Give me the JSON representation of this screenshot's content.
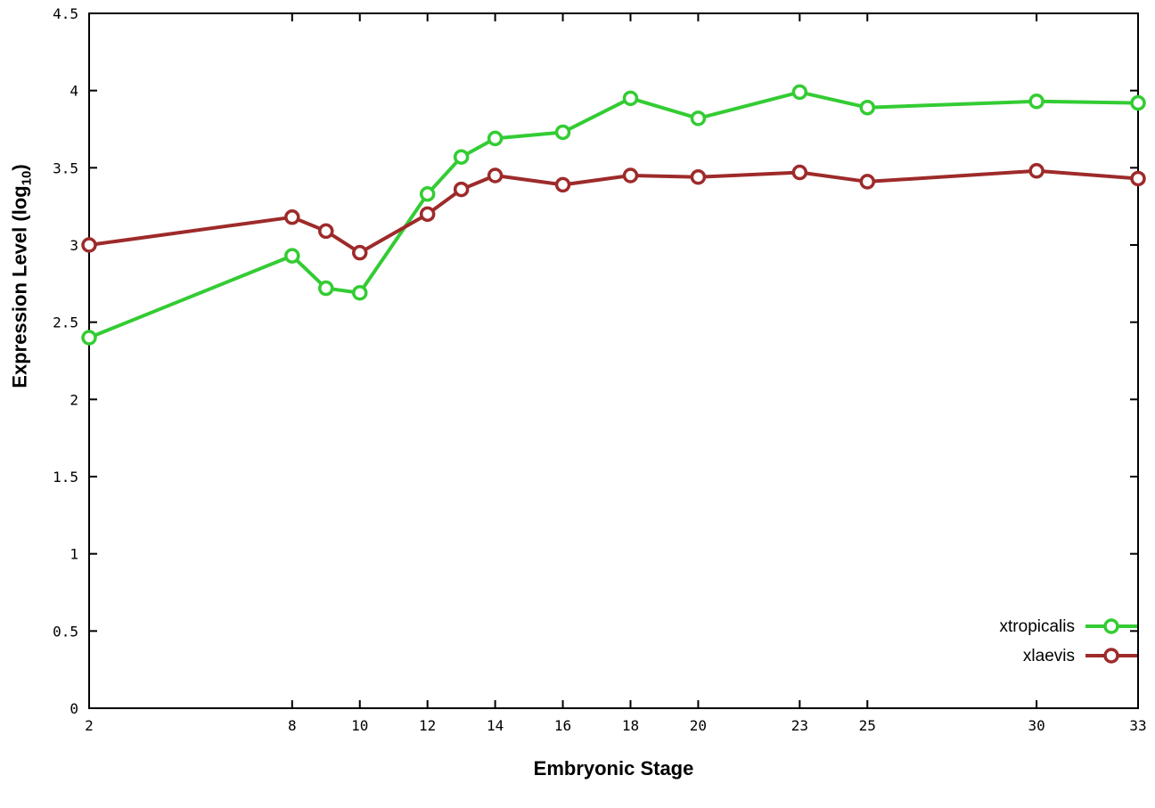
{
  "chart_data": {
    "type": "line",
    "title": "",
    "xlabel": "Embryonic Stage",
    "ylabel": {
      "prefix": "Expression Level (log",
      "sub": "10",
      "suffix": ")"
    },
    "xlim": [
      2,
      33
    ],
    "ylim": [
      0,
      4.5
    ],
    "xticks": [
      2,
      8,
      10,
      12,
      14,
      16,
      18,
      20,
      23,
      25,
      30,
      33
    ],
    "yticks": [
      0,
      0.5,
      1,
      1.5,
      2,
      2.5,
      3,
      3.5,
      4,
      4.5
    ],
    "grid": false,
    "legend_position": "bottom-right",
    "marker": "open-circle",
    "x": [
      2,
      8,
      9,
      10,
      12,
      13,
      14,
      16,
      18,
      20,
      23,
      25,
      30,
      33
    ],
    "series": [
      {
        "name": "xtropicalis",
        "color": "#33cc33",
        "values": [
          2.4,
          2.93,
          2.72,
          2.69,
          3.33,
          3.57,
          3.69,
          3.73,
          3.95,
          3.82,
          3.99,
          3.89,
          3.93,
          3.92
        ]
      },
      {
        "name": "xlaevis",
        "color": "#9e2a2a",
        "values": [
          3.0,
          3.18,
          3.09,
          2.95,
          3.2,
          3.36,
          3.45,
          3.39,
          3.45,
          3.44,
          3.47,
          3.41,
          3.48,
          3.43
        ]
      }
    ]
  }
}
